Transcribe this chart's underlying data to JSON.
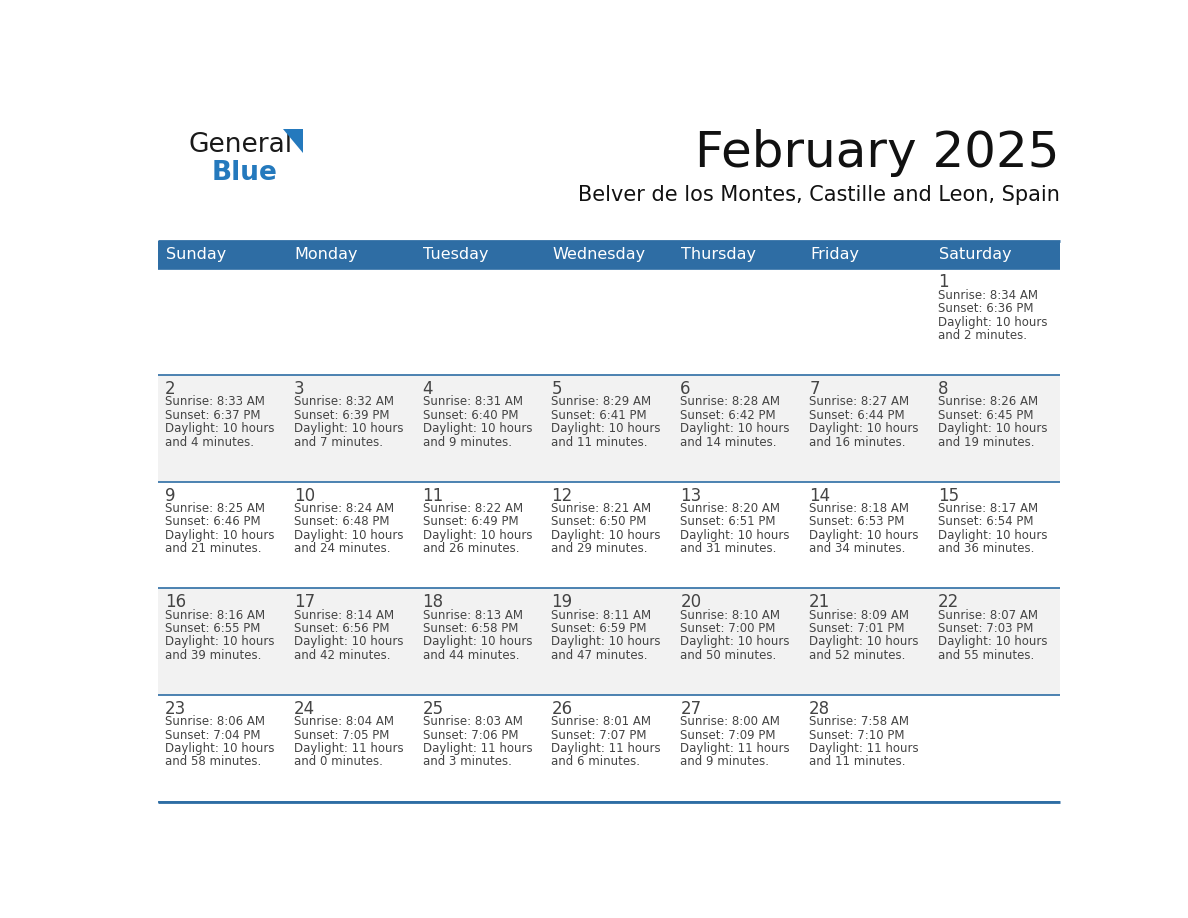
{
  "title": "February 2025",
  "subtitle": "Belver de los Montes, Castille and Leon, Spain",
  "header_color": "#2E6DA4",
  "header_text_color": "#FFFFFF",
  "cell_bg_color": "#FFFFFF",
  "cell_alt_bg_color": "#F2F2F2",
  "cell_line_color": "#2E6DA4",
  "text_color": "#444444",
  "days_of_week": [
    "Sunday",
    "Monday",
    "Tuesday",
    "Wednesday",
    "Thursday",
    "Friday",
    "Saturday"
  ],
  "weeks": [
    [
      null,
      null,
      null,
      null,
      null,
      null,
      1
    ],
    [
      2,
      3,
      4,
      5,
      6,
      7,
      8
    ],
    [
      9,
      10,
      11,
      12,
      13,
      14,
      15
    ],
    [
      16,
      17,
      18,
      19,
      20,
      21,
      22
    ],
    [
      23,
      24,
      25,
      26,
      27,
      28,
      null
    ]
  ],
  "cell_data": {
    "1": {
      "sunrise": "8:34 AM",
      "sunset": "6:36 PM",
      "daylight_hours": 10,
      "daylight_minutes": 2
    },
    "2": {
      "sunrise": "8:33 AM",
      "sunset": "6:37 PM",
      "daylight_hours": 10,
      "daylight_minutes": 4
    },
    "3": {
      "sunrise": "8:32 AM",
      "sunset": "6:39 PM",
      "daylight_hours": 10,
      "daylight_minutes": 7
    },
    "4": {
      "sunrise": "8:31 AM",
      "sunset": "6:40 PM",
      "daylight_hours": 10,
      "daylight_minutes": 9
    },
    "5": {
      "sunrise": "8:29 AM",
      "sunset": "6:41 PM",
      "daylight_hours": 10,
      "daylight_minutes": 11
    },
    "6": {
      "sunrise": "8:28 AM",
      "sunset": "6:42 PM",
      "daylight_hours": 10,
      "daylight_minutes": 14
    },
    "7": {
      "sunrise": "8:27 AM",
      "sunset": "6:44 PM",
      "daylight_hours": 10,
      "daylight_minutes": 16
    },
    "8": {
      "sunrise": "8:26 AM",
      "sunset": "6:45 PM",
      "daylight_hours": 10,
      "daylight_minutes": 19
    },
    "9": {
      "sunrise": "8:25 AM",
      "sunset": "6:46 PM",
      "daylight_hours": 10,
      "daylight_minutes": 21
    },
    "10": {
      "sunrise": "8:24 AM",
      "sunset": "6:48 PM",
      "daylight_hours": 10,
      "daylight_minutes": 24
    },
    "11": {
      "sunrise": "8:22 AM",
      "sunset": "6:49 PM",
      "daylight_hours": 10,
      "daylight_minutes": 26
    },
    "12": {
      "sunrise": "8:21 AM",
      "sunset": "6:50 PM",
      "daylight_hours": 10,
      "daylight_minutes": 29
    },
    "13": {
      "sunrise": "8:20 AM",
      "sunset": "6:51 PM",
      "daylight_hours": 10,
      "daylight_minutes": 31
    },
    "14": {
      "sunrise": "8:18 AM",
      "sunset": "6:53 PM",
      "daylight_hours": 10,
      "daylight_minutes": 34
    },
    "15": {
      "sunrise": "8:17 AM",
      "sunset": "6:54 PM",
      "daylight_hours": 10,
      "daylight_minutes": 36
    },
    "16": {
      "sunrise": "8:16 AM",
      "sunset": "6:55 PM",
      "daylight_hours": 10,
      "daylight_minutes": 39
    },
    "17": {
      "sunrise": "8:14 AM",
      "sunset": "6:56 PM",
      "daylight_hours": 10,
      "daylight_minutes": 42
    },
    "18": {
      "sunrise": "8:13 AM",
      "sunset": "6:58 PM",
      "daylight_hours": 10,
      "daylight_minutes": 44
    },
    "19": {
      "sunrise": "8:11 AM",
      "sunset": "6:59 PM",
      "daylight_hours": 10,
      "daylight_minutes": 47
    },
    "20": {
      "sunrise": "8:10 AM",
      "sunset": "7:00 PM",
      "daylight_hours": 10,
      "daylight_minutes": 50
    },
    "21": {
      "sunrise": "8:09 AM",
      "sunset": "7:01 PM",
      "daylight_hours": 10,
      "daylight_minutes": 52
    },
    "22": {
      "sunrise": "8:07 AM",
      "sunset": "7:03 PM",
      "daylight_hours": 10,
      "daylight_minutes": 55
    },
    "23": {
      "sunrise": "8:06 AM",
      "sunset": "7:04 PM",
      "daylight_hours": 10,
      "daylight_minutes": 58
    },
    "24": {
      "sunrise": "8:04 AM",
      "sunset": "7:05 PM",
      "daylight_hours": 11,
      "daylight_minutes": 0
    },
    "25": {
      "sunrise": "8:03 AM",
      "sunset": "7:06 PM",
      "daylight_hours": 11,
      "daylight_minutes": 3
    },
    "26": {
      "sunrise": "8:01 AM",
      "sunset": "7:07 PM",
      "daylight_hours": 11,
      "daylight_minutes": 6
    },
    "27": {
      "sunrise": "8:00 AM",
      "sunset": "7:09 PM",
      "daylight_hours": 11,
      "daylight_minutes": 9
    },
    "28": {
      "sunrise": "7:58 AM",
      "sunset": "7:10 PM",
      "daylight_hours": 11,
      "daylight_minutes": 11
    }
  },
  "logo_text1": "General",
  "logo_text2": "Blue",
  "logo_color1": "#1a1a1a",
  "logo_color2": "#2479BD",
  "logo_triangle_color": "#2479BD",
  "title_fontsize": 36,
  "subtitle_fontsize": 15,
  "header_fontsize": 11.5,
  "day_num_fontsize": 12,
  "cell_text_fontsize": 8.5
}
